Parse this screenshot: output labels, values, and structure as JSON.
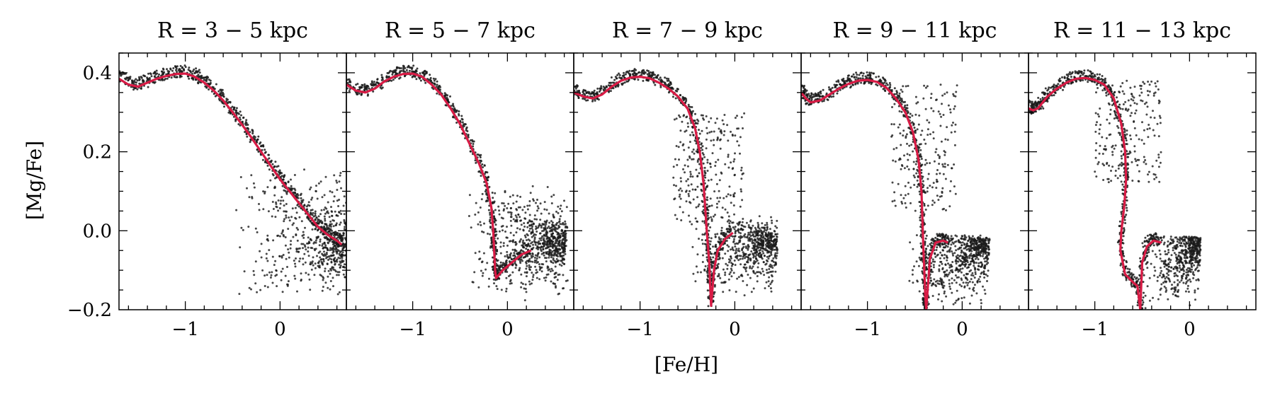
{
  "chart_data": {
    "type": "scatter",
    "xlabel": "[Fe/H]",
    "ylabel": "[Mg/Fe]",
    "xlim": [
      -1.7,
      0.7
    ],
    "ylim": [
      -0.2,
      0.45
    ],
    "xticks": [
      -1,
      0
    ],
    "xtick_labels": [
      "−1",
      "0"
    ],
    "yticks": [
      0.4,
      0.2,
      0.0,
      -0.2
    ],
    "ytick_labels": [
      "0.4",
      "0.2",
      "0.0",
      "−0.2"
    ],
    "colors": {
      "points": "#1a1a1a",
      "track": "#d81b45",
      "axes": "#000000"
    },
    "panels": [
      {
        "title": "R = 3 − 5 kpc",
        "track": [
          [
            -1.7,
            0.385
          ],
          [
            -1.6,
            0.37
          ],
          [
            -1.5,
            0.365
          ],
          [
            -1.4,
            0.375
          ],
          [
            -1.3,
            0.385
          ],
          [
            -1.2,
            0.392
          ],
          [
            -1.1,
            0.397
          ],
          [
            -1.0,
            0.398
          ],
          [
            -0.9,
            0.39
          ],
          [
            -0.8,
            0.375
          ],
          [
            -0.7,
            0.355
          ],
          [
            -0.6,
            0.33
          ],
          [
            -0.5,
            0.3
          ],
          [
            -0.4,
            0.268
          ],
          [
            -0.3,
            0.235
          ],
          [
            -0.2,
            0.2
          ],
          [
            -0.1,
            0.165
          ],
          [
            0.0,
            0.13
          ],
          [
            0.1,
            0.1
          ],
          [
            0.2,
            0.07
          ],
          [
            0.3,
            0.04
          ],
          [
            0.4,
            0.01
          ],
          [
            0.5,
            -0.01
          ],
          [
            0.6,
            -0.025
          ],
          [
            0.65,
            -0.035
          ]
        ],
        "clouds": [
          {
            "x": [
              -0.5,
              0.8
            ],
            "y": [
              -0.17,
              0.18
            ],
            "n": 700,
            "apex": [
              0.75,
              -0.06
            ]
          }
        ]
      },
      {
        "title": "R = 5 − 7 kpc",
        "track": [
          [
            -1.7,
            0.37
          ],
          [
            -1.6,
            0.355
          ],
          [
            -1.5,
            0.35
          ],
          [
            -1.4,
            0.36
          ],
          [
            -1.3,
            0.378
          ],
          [
            -1.2,
            0.39
          ],
          [
            -1.1,
            0.397
          ],
          [
            -1.0,
            0.398
          ],
          [
            -0.9,
            0.39
          ],
          [
            -0.8,
            0.37
          ],
          [
            -0.7,
            0.345
          ],
          [
            -0.6,
            0.31
          ],
          [
            -0.5,
            0.27
          ],
          [
            -0.4,
            0.22
          ],
          [
            -0.3,
            0.17
          ],
          [
            -0.22,
            0.12
          ],
          [
            -0.17,
            0.06
          ],
          [
            -0.15,
            0.0
          ],
          [
            -0.14,
            -0.05
          ],
          [
            -0.13,
            -0.1
          ],
          [
            -0.12,
            -0.12
          ],
          [
            -0.05,
            -0.1
          ],
          [
            0.05,
            -0.08
          ],
          [
            0.15,
            -0.06
          ],
          [
            0.25,
            -0.05
          ]
        ],
        "clouds": [
          {
            "x": [
              -0.45,
              0.65
            ],
            "y": [
              -0.18,
              0.12
            ],
            "n": 800,
            "apex": [
              0.6,
              -0.03
            ]
          }
        ]
      },
      {
        "title": "R = 7 − 9 kpc",
        "track": [
          [
            -1.7,
            0.35
          ],
          [
            -1.6,
            0.34
          ],
          [
            -1.5,
            0.335
          ],
          [
            -1.4,
            0.345
          ],
          [
            -1.3,
            0.365
          ],
          [
            -1.2,
            0.38
          ],
          [
            -1.1,
            0.388
          ],
          [
            -1.0,
            0.39
          ],
          [
            -0.9,
            0.386
          ],
          [
            -0.8,
            0.375
          ],
          [
            -0.7,
            0.36
          ],
          [
            -0.6,
            0.34
          ],
          [
            -0.5,
            0.31
          ],
          [
            -0.42,
            0.26
          ],
          [
            -0.37,
            0.2
          ],
          [
            -0.33,
            0.12
          ],
          [
            -0.31,
            0.05
          ],
          [
            -0.29,
            -0.02
          ],
          [
            -0.27,
            -0.08
          ],
          [
            -0.26,
            -0.14
          ],
          [
            -0.25,
            -0.19
          ],
          [
            -0.22,
            -0.1
          ],
          [
            -0.18,
            -0.05
          ],
          [
            -0.1,
            -0.02
          ],
          [
            -0.02,
            -0.005
          ]
        ],
        "clouds": [
          {
            "x": [
              -0.5,
              0.45
            ],
            "y": [
              -0.18,
              0.05
            ],
            "n": 650,
            "apex": [
              0.45,
              -0.02
            ]
          },
          {
            "x": [
              -0.65,
              0.1
            ],
            "y": [
              0.02,
              0.3
            ],
            "n": 250,
            "apex": null
          }
        ]
      },
      {
        "title": "R = 9 − 11 kpc",
        "track": [
          [
            -1.7,
            0.35
          ],
          [
            -1.65,
            0.335
          ],
          [
            -1.6,
            0.325
          ],
          [
            -1.5,
            0.33
          ],
          [
            -1.4,
            0.345
          ],
          [
            -1.3,
            0.36
          ],
          [
            -1.2,
            0.372
          ],
          [
            -1.1,
            0.38
          ],
          [
            -1.0,
            0.382
          ],
          [
            -0.9,
            0.377
          ],
          [
            -0.8,
            0.362
          ],
          [
            -0.7,
            0.335
          ],
          [
            -0.6,
            0.3
          ],
          [
            -0.52,
            0.25
          ],
          [
            -0.46,
            0.18
          ],
          [
            -0.43,
            0.1
          ],
          [
            -0.42,
            0.03
          ],
          [
            -0.41,
            -0.04
          ],
          [
            -0.4,
            -0.1
          ],
          [
            -0.39,
            -0.16
          ],
          [
            -0.38,
            -0.2
          ],
          [
            -0.34,
            -0.07
          ],
          [
            -0.28,
            -0.03
          ],
          [
            -0.2,
            -0.025
          ],
          [
            -0.15,
            -0.03
          ]
        ],
        "clouds": [
          {
            "x": [
              -0.6,
              0.25
            ],
            "y": [
              -0.2,
              -0.01
            ],
            "n": 650,
            "apex": [
              0.3,
              -0.02
            ]
          },
          {
            "x": [
              -0.75,
              -0.05
            ],
            "y": [
              0.05,
              0.37
            ],
            "n": 220,
            "apex": null
          }
        ]
      },
      {
        "title": "R = 11 − 13 kpc",
        "track": [
          [
            -1.7,
            0.31
          ],
          [
            -1.65,
            0.305
          ],
          [
            -1.6,
            0.31
          ],
          [
            -1.55,
            0.325
          ],
          [
            -1.5,
            0.34
          ],
          [
            -1.4,
            0.36
          ],
          [
            -1.3,
            0.375
          ],
          [
            -1.2,
            0.385
          ],
          [
            -1.1,
            0.387
          ],
          [
            -1.0,
            0.382
          ],
          [
            -0.9,
            0.37
          ],
          [
            -0.8,
            0.335
          ],
          [
            -0.72,
            0.27
          ],
          [
            -0.68,
            0.2
          ],
          [
            -0.67,
            0.13
          ],
          [
            -0.69,
            0.06
          ],
          [
            -0.72,
            0.0
          ],
          [
            -0.73,
            -0.05
          ],
          [
            -0.68,
            -0.11
          ],
          [
            -0.6,
            -0.13
          ],
          [
            -0.55,
            -0.14
          ],
          [
            -0.52,
            -0.2
          ],
          [
            -0.5,
            -0.08
          ],
          [
            -0.45,
            -0.04
          ],
          [
            -0.38,
            -0.025
          ],
          [
            -0.3,
            -0.03
          ]
        ],
        "clouds": [
          {
            "x": [
              -0.55,
              0.1
            ],
            "y": [
              -0.2,
              -0.01
            ],
            "n": 550,
            "apex": [
              0.12,
              -0.02
            ]
          },
          {
            "x": [
              -1.0,
              -0.3
            ],
            "y": [
              0.12,
              0.38
            ],
            "n": 220,
            "apex": null
          }
        ]
      }
    ]
  }
}
